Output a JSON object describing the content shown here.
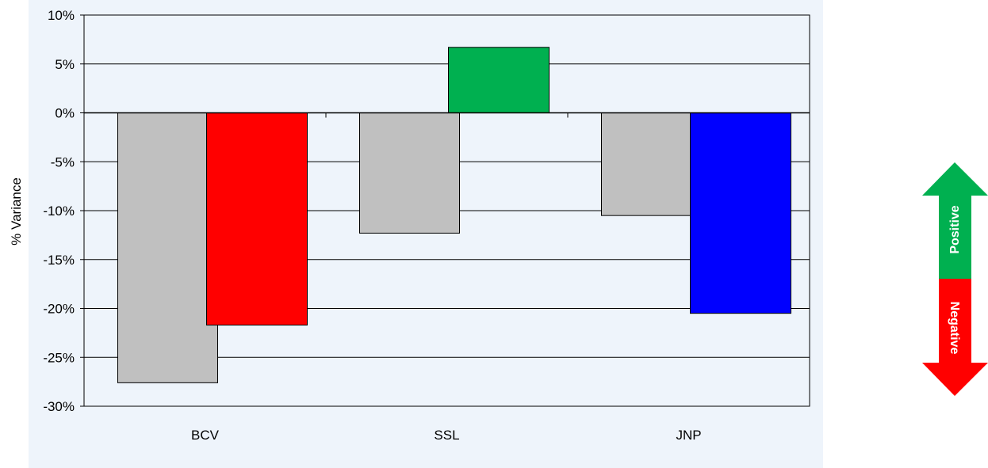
{
  "chart_data": {
    "type": "bar",
    "categories": [
      "BCV",
      "SSL",
      "JNP"
    ],
    "series": [
      {
        "values": [
          -27.6,
          -12.3,
          -10.5
        ],
        "color": "#c0c0c0"
      },
      {
        "values": [
          -21.7,
          6.7,
          -20.5
        ],
        "colors": [
          "#ff0000",
          "#00b050",
          "#0000ff"
        ]
      }
    ],
    "xlabel": "",
    "ylabel": "% Variance",
    "ylim": [
      -30,
      10
    ],
    "yticks": [
      10,
      5,
      0,
      -5,
      -10,
      -15,
      -20,
      -25,
      -30
    ],
    "ytick_suffix": "%",
    "grid": true,
    "legend_arrow": {
      "up_label": "Positive",
      "down_label": "Negative",
      "up_color": "#00b050",
      "down_color": "#ff0000"
    }
  }
}
